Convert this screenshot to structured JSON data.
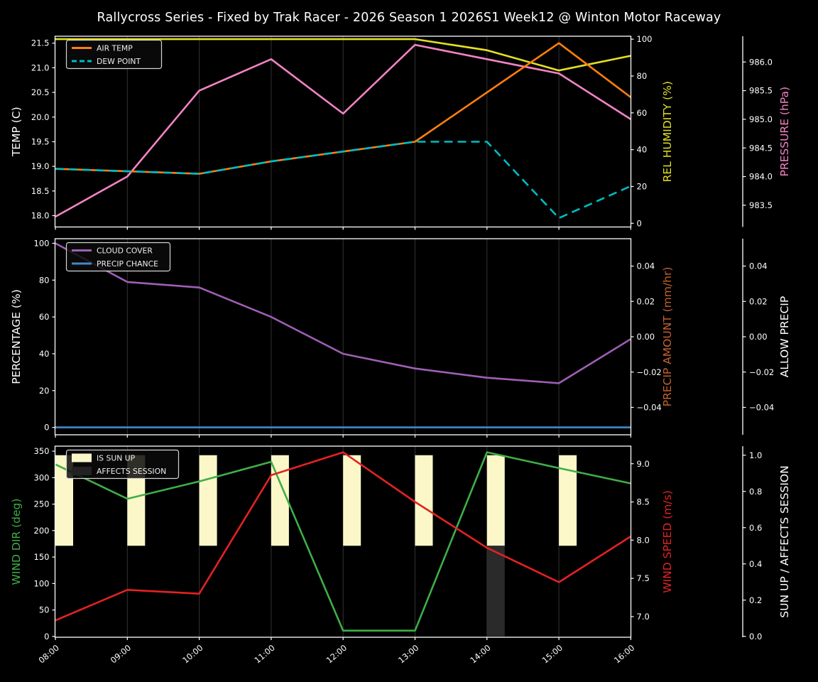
{
  "title": "Rallycross Series - Fixed by Trak Racer - 2026 Season 1 2026S1 Week12 @ Winton Motor Raceway",
  "colors": {
    "background": "#000000",
    "text": "#ffffff",
    "grid": "#333333",
    "spine": "#ffffff",
    "legend_bg": "#0a0a0a",
    "legend_border": "#d4d4d4"
  },
  "x_tick_labels": [
    "08:00",
    "09:00",
    "10:00",
    "11:00",
    "12:00",
    "13:00",
    "14:00",
    "15:00",
    "16:00"
  ],
  "chart_data": [
    {
      "type": "line",
      "panel": "temperature",
      "x": [
        "08:00",
        "09:00",
        "10:00",
        "11:00",
        "12:00",
        "13:00",
        "14:00",
        "15:00",
        "16:00"
      ],
      "axes": {
        "left": {
          "id": "temp",
          "label": "TEMP (C)",
          "label_color": "#ffffff",
          "tick_vals": [
            21.5,
            21.0,
            20.5,
            20.0,
            19.5,
            19.0,
            18.5,
            18.0
          ],
          "tick_labels": [
            "21.5",
            "21.0",
            "20.5",
            "20.0",
            "19.5",
            "19.0",
            "18.5",
            "18.0"
          ],
          "min": 17.77,
          "max": 21.64
        },
        "right1": {
          "id": "humidity",
          "label": "REL HUMIDITY (%)",
          "label_color": "#e4e024",
          "tick_vals": [
            100,
            80,
            60,
            40,
            20,
            0
          ],
          "tick_labels": [
            "100",
            "80",
            "60",
            "40",
            "20",
            "0"
          ],
          "min": -2.0,
          "max": 101.6
        },
        "right2": {
          "id": "pressure",
          "label": "PRESSURE (hPa)",
          "label_color": "#f383c4",
          "tick_vals": [
            986.0,
            985.5,
            985.0,
            984.5,
            984.0,
            983.5
          ],
          "tick_labels": [
            "986.0",
            "985.5",
            "985.0",
            "984.5",
            "984.0",
            "983.5"
          ],
          "min": 983.12,
          "max": 986.45
        }
      },
      "series": [
        {
          "name": "REL HUMIDITY",
          "axis": "right1",
          "type": "line",
          "color": "#e4e024",
          "dash": null,
          "values": [
            100,
            100,
            100,
            100,
            100,
            100,
            94,
            83,
            91
          ]
        },
        {
          "name": "PRESSURE",
          "axis": "right2",
          "type": "line",
          "color": "#f383c4",
          "dash": null,
          "values": [
            983.3,
            984.0,
            985.5,
            986.05,
            985.1,
            986.3,
            986.05,
            985.8,
            985.0
          ]
        },
        {
          "name": "AIR TEMP",
          "axis": "left",
          "type": "line",
          "color": "#ff7f0e",
          "dash": null,
          "values": [
            18.95,
            18.9,
            18.85,
            19.1,
            19.3,
            19.5,
            20.5,
            21.5,
            20.4
          ]
        },
        {
          "name": "DEW POINT",
          "axis": "left",
          "type": "line",
          "color": "#00bcc2",
          "dash": "12 7",
          "values": [
            18.95,
            18.9,
            18.85,
            19.1,
            19.3,
            19.5,
            19.5,
            17.95,
            18.6
          ]
        }
      ],
      "legend": [
        {
          "label": "AIR TEMP",
          "swatch": "line",
          "color": "#ff7f0e",
          "dash": null
        },
        {
          "label": "DEW POINT",
          "swatch": "line",
          "color": "#00bcc2",
          "dash": "7 4"
        }
      ]
    },
    {
      "type": "line",
      "panel": "precip",
      "x": [
        "08:00",
        "09:00",
        "10:00",
        "11:00",
        "12:00",
        "13:00",
        "14:00",
        "15:00",
        "16:00"
      ],
      "axes": {
        "left": {
          "id": "percentage",
          "label": "PERCENTAGE (%)",
          "label_color": "#ffffff",
          "tick_vals": [
            100,
            80,
            60,
            40,
            20,
            0
          ],
          "tick_labels": [
            "100",
            "80",
            "60",
            "40",
            "20",
            "0"
          ],
          "min": -4.0,
          "max": 102.5
        },
        "right1": {
          "id": "precip_amount",
          "label": "PRECIP AMOUNT (mm/hr)",
          "label_color": "#c4622d",
          "tick_vals": [
            0.04,
            0.02,
            0.0,
            -0.02,
            -0.04
          ],
          "tick_labels": [
            "0.04",
            "0.02",
            "0.00",
            "−0.02",
            "−0.04"
          ],
          "min": -0.0555,
          "max": 0.0555
        },
        "right2": {
          "id": "allow_precip",
          "label": "ALLOW PRECIP",
          "label_color": "#ffffff",
          "tick_vals": [
            0.04,
            0.02,
            0.0,
            -0.02,
            -0.04
          ],
          "tick_labels": [
            "0.04",
            "0.02",
            "0.00",
            "−0.02",
            "−0.04"
          ],
          "min": -0.0555,
          "max": 0.0555
        }
      },
      "series": [
        {
          "name": "CLOUD COVER",
          "axis": "left",
          "type": "line",
          "color": "#9f5fb5",
          "dash": null,
          "values": [
            100,
            79,
            76,
            60,
            40,
            32,
            27,
            24,
            48
          ]
        },
        {
          "name": "PRECIP CHANCE",
          "axis": "left",
          "type": "line",
          "color": "#4489c4",
          "dash": null,
          "values": [
            0,
            0,
            0,
            0,
            0,
            0,
            0,
            0,
            0
          ]
        }
      ],
      "legend": [
        {
          "label": "CLOUD COVER",
          "swatch": "line",
          "color": "#9f5fb5",
          "dash": null
        },
        {
          "label": "PRECIP CHANCE",
          "swatch": "line",
          "color": "#4489c4",
          "dash": null
        }
      ]
    },
    {
      "type": "line",
      "panel": "wind",
      "x": [
        "08:00",
        "09:00",
        "10:00",
        "11:00",
        "12:00",
        "13:00",
        "14:00",
        "15:00",
        "16:00"
      ],
      "axes": {
        "left": {
          "id": "wind_dir",
          "label": "WIND DIR (deg)",
          "label_color": "#3fae47",
          "tick_vals": [
            350,
            300,
            250,
            200,
            150,
            100,
            50,
            0
          ],
          "tick_labels": [
            "350",
            "300",
            "250",
            "200",
            "150",
            "100",
            "50",
            "0"
          ],
          "min": -1.5,
          "max": 359.5
        },
        "right1": {
          "id": "wind_speed",
          "label": "WIND SPEED (m/s)",
          "label_color": "#e32222",
          "tick_vals": [
            9.0,
            8.5,
            8.0,
            7.5,
            7.0
          ],
          "tick_labels": [
            "9.0",
            "8.5",
            "8.0",
            "7.5",
            "7.0"
          ],
          "min": 6.73,
          "max": 9.23
        },
        "right2": {
          "id": "sun_session",
          "label": "SUN UP / AFFECTS SESSION",
          "label_color": "#ffffff",
          "tick_vals": [
            1.0,
            0.8,
            0.6,
            0.4,
            0.2,
            0.0
          ],
          "tick_labels": [
            "1.0",
            "0.8",
            "0.6",
            "0.4",
            "0.2",
            "0.0"
          ],
          "min": -0.005,
          "max": 1.05
        }
      },
      "series": [
        {
          "name": "IS SUN UP",
          "axis": "right2",
          "type": "bar",
          "color": "#fbf7c8",
          "bar_from": 0.5,
          "bar_to": 1.0,
          "values": [
            1,
            1,
            1,
            1,
            1,
            1,
            1,
            1,
            0
          ]
        },
        {
          "name": "AFFECTS SESSION",
          "axis": "right2",
          "type": "bar",
          "color": "#2a2a2a",
          "bar_from": 0.0,
          "bar_to": 0.5,
          "values": [
            0,
            0,
            0,
            0,
            0,
            0,
            1,
            0,
            0
          ]
        },
        {
          "name": "WIND DIR",
          "axis": "left",
          "type": "line",
          "color": "#3fae47",
          "dash": null,
          "values": [
            325,
            260,
            293,
            330,
            11,
            11,
            348,
            318,
            289
          ]
        },
        {
          "name": "WIND SPEED",
          "axis": "right1",
          "type": "line",
          "color": "#e32222",
          "dash": null,
          "values": [
            6.95,
            7.35,
            7.3,
            8.85,
            9.15,
            8.5,
            7.9,
            7.45,
            8.05
          ]
        }
      ],
      "legend": [
        {
          "label": "IS SUN UP",
          "swatch": "patch",
          "color": "#fbf7c8",
          "dash": null
        },
        {
          "label": "AFFECTS SESSION",
          "swatch": "patch",
          "color": "#222222",
          "dash": null
        }
      ]
    }
  ]
}
